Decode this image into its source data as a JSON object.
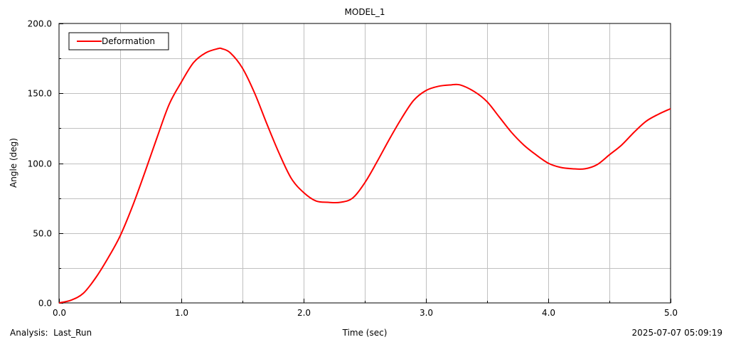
{
  "chart_data": {
    "type": "line",
    "title": "MODEL_1",
    "xlabel": "Time (sec)",
    "ylabel": "Angle (deg)",
    "xlim": [
      0.0,
      5.0
    ],
    "ylim": [
      0.0,
      200.0
    ],
    "x_major_ticks": [
      0.0,
      1.0,
      2.0,
      3.0,
      4.0,
      5.0
    ],
    "x_tick_labels": [
      "0.0",
      "1.0",
      "2.0",
      "3.0",
      "4.0",
      "5.0"
    ],
    "x_minor_ticks": [
      0.5,
      1.5,
      2.5,
      3.5,
      4.5
    ],
    "y_major_ticks": [
      0.0,
      50.0,
      100.0,
      150.0,
      200.0
    ],
    "y_tick_labels": [
      "0.0",
      "50.0",
      "100.0",
      "150.0",
      "200.0"
    ],
    "y_minor_ticks": [
      25.0,
      75.0,
      125.0,
      175.0
    ],
    "grid": true,
    "legend_position": "top-left",
    "colors": {
      "series": "#ff0000",
      "grid": "#c0c0c0",
      "axis": "#000000"
    },
    "series": [
      {
        "name": "Deformation",
        "x": [
          0.0,
          0.1,
          0.2,
          0.3,
          0.4,
          0.5,
          0.6,
          0.7,
          0.8,
          0.9,
          1.0,
          1.1,
          1.2,
          1.3,
          1.33,
          1.4,
          1.5,
          1.6,
          1.7,
          1.8,
          1.9,
          2.0,
          2.1,
          2.2,
          2.3,
          2.4,
          2.5,
          2.6,
          2.7,
          2.8,
          2.9,
          3.0,
          3.1,
          3.2,
          3.28,
          3.4,
          3.5,
          3.6,
          3.7,
          3.8,
          3.9,
          4.0,
          4.1,
          4.2,
          4.3,
          4.4,
          4.5,
          4.6,
          4.7,
          4.8,
          4.9,
          5.0
        ],
        "values": [
          0.0,
          2.0,
          7.0,
          18.0,
          32.0,
          48.0,
          69.0,
          93.0,
          118.0,
          142.0,
          158.0,
          172.0,
          179.0,
          182.0,
          182.0,
          179.0,
          168.0,
          150.0,
          128.0,
          107.0,
          89.0,
          79.0,
          73.0,
          72.0,
          72.0,
          75.0,
          86.0,
          101.0,
          117.0,
          132.0,
          145.0,
          152.0,
          155.0,
          156.0,
          156.0,
          151.0,
          144.0,
          133.0,
          122.0,
          113.0,
          106.0,
          100.0,
          97.0,
          96.0,
          96.0,
          99.0,
          106.0,
          113.0,
          122.0,
          130.0,
          135.0,
          139.0
        ]
      }
    ]
  },
  "footer": {
    "analysis_label": "Analysis:  Last_Run",
    "timestamp": "2025-07-07 05:09:19"
  }
}
